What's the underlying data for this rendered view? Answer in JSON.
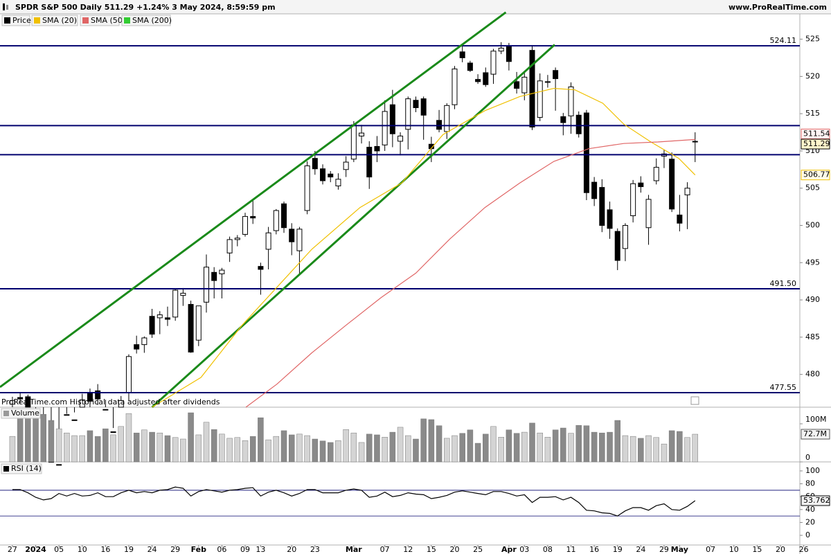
{
  "header": {
    "title": "SPDR S&P 500 Daily 511.29 +1.24% 3 May 2024, 8:59:59 pm",
    "site": "www.ProRealTime.com"
  },
  "chart_data": [
    {
      "type": "candlestick",
      "note": "ProRealTime.com Historical data adjusted after dividends",
      "xlim": [
        -1.6,
        101.5
      ],
      "ylim": [
        475.6,
        528.4
      ],
      "yticks": [
        480,
        485,
        490,
        495,
        500,
        505,
        510,
        515,
        520,
        525
      ],
      "series": [
        {
          "name": "Price",
          "color": "#000000",
          "open": [
            476.0,
            476.9,
            477.0,
            473.4,
            470.4,
            468.3,
            467.5,
            468.4,
            471.9,
            474.2,
            477.6,
            477.8,
            475.3,
            471.8,
            474.0,
            477.6,
            484.0,
            484.0,
            487.8,
            487.6,
            487.6,
            487.7,
            490.6,
            489.4,
            484.6,
            489.7,
            493.7,
            493.5,
            496.3,
            498.1,
            498.8,
            501.2,
            494.5,
            496.8,
            499.3,
            502.9,
            499.5,
            496.6,
            502.0,
            509.0,
            507.6,
            506.9,
            505.3,
            507.5,
            508.9,
            512.0,
            510.5,
            510.6,
            510.8,
            516.2,
            511.3,
            512.9,
            516.8,
            517.0,
            510.9,
            514.1,
            512.6,
            516.2,
            523.3,
            521.8,
            519.6,
            520.5,
            520.3,
            523.4,
            524.0,
            519.3,
            517.8,
            523.5,
            514.5,
            519.2,
            520.8,
            514.6,
            514.7,
            514.8,
            515.1,
            505.8,
            505.1,
            502.1,
            499.2,
            496.9,
            501.3,
            505.7,
            499.7,
            506.0,
            509.3,
            508.9,
            501.4,
            504.1,
            511.2
          ],
          "high": [
            477.0,
            477.6,
            477.3,
            473.8,
            471.2,
            470.9,
            470.4,
            474.7,
            474.9,
            477.4,
            478.1,
            478.7,
            476.6,
            472.8,
            477.1,
            482.7,
            485.2,
            485.1,
            488.8,
            488.5,
            489.1,
            491.4,
            491.6,
            489.9,
            489.2,
            496.1,
            494.4,
            494.3,
            498.5,
            498.7,
            501.7,
            503.5,
            495.0,
            499.8,
            502.2,
            503.2,
            500.3,
            499.8,
            508.6,
            510.0,
            508.2,
            507.3,
            507.0,
            509.3,
            514.0,
            513.5,
            511.3,
            512.0,
            516.8,
            518.2,
            512.5,
            517.3,
            517.3,
            517.3,
            511.9,
            515.5,
            516.4,
            521.4,
            524.2,
            522.1,
            520.3,
            521.2,
            523.7,
            524.6,
            524.5,
            520.6,
            520.7,
            524.2,
            520.4,
            520.2,
            521.2,
            515.1,
            519.2,
            515.3,
            515.5,
            506.5,
            506.2,
            503.2,
            499.6,
            500.3,
            506.1,
            506.6,
            504.1,
            509.0,
            510.2,
            509.8,
            504.1,
            505.8,
            512.5
          ],
          "low": [
            475.0,
            476.1,
            473.7,
            470.5,
            468.2,
            467.3,
            466.4,
            468.3,
            471.4,
            473.9,
            473.3,
            475.9,
            473.1,
            469.9,
            472.0,
            476.5,
            482.8,
            482.9,
            484.9,
            485.4,
            486.5,
            487.2,
            489.2,
            482.9,
            483.8,
            488.3,
            490.2,
            490.2,
            495.1,
            497.2,
            498.5,
            500.2,
            490.7,
            494.1,
            498.8,
            499.0,
            496.0,
            493.5,
            501.5,
            506.8,
            505.5,
            505.8,
            504.8,
            506.5,
            508.5,
            511.0,
            504.9,
            508.5,
            510.0,
            510.5,
            509.4,
            510.2,
            515.2,
            511.5,
            508.5,
            512.5,
            511.6,
            515.6,
            521.9,
            520.6,
            519.0,
            518.6,
            519.0,
            523.0,
            520.8,
            517.7,
            516.8,
            512.8,
            514.0,
            518.5,
            515.4,
            512.1,
            512.3,
            511.8,
            503.4,
            502.6,
            499.1,
            498.2,
            494.0,
            495.2,
            500.4,
            504.4,
            497.4,
            505.5,
            507.7,
            501.8,
            499.2,
            499.5,
            508.5
          ],
          "close": [
            476.5,
            476.7,
            475.3,
            472.7,
            468.8,
            467.3,
            467.9,
            474.6,
            473.9,
            476.6,
            476.4,
            476.7,
            474.9,
            472.3,
            476.5,
            482.4,
            483.4,
            484.9,
            485.4,
            488.0,
            487.4,
            491.3,
            490.9,
            483.0,
            489.2,
            494.4,
            492.6,
            494.0,
            498.1,
            498.3,
            501.2,
            501.0,
            494.1,
            499.0,
            502.0,
            499.7,
            497.8,
            499.5,
            508.0,
            507.6,
            506.0,
            506.5,
            506.2,
            508.5,
            513.5,
            512.4,
            506.5,
            510.0,
            515.3,
            512.3,
            512.0,
            517.0,
            515.8,
            514.8,
            510.3,
            512.9,
            516.1,
            521.0,
            522.5,
            520.8,
            519.3,
            518.9,
            523.4,
            523.8,
            522.0,
            518.4,
            519.9,
            513.2,
            519.4,
            519.3,
            519.7,
            513.8,
            518.6,
            512.3,
            504.4,
            503.6,
            500.0,
            499.6,
            495.3,
            500.0,
            505.6,
            505.2,
            503.5,
            507.8,
            509.6,
            502.2,
            500.3,
            505.0,
            511.29
          ]
        },
        {
          "name": "SMA (20)",
          "color": "#f0c000",
          "x": [
            18.0,
            24.3,
            29.6,
            34.1,
            38.6,
            44.8,
            50.2,
            55.5,
            60.9,
            65.4,
            69.8,
            72.5,
            76.1,
            78.8,
            82.3,
            85.9,
            88
          ],
          "values": [
            475.6,
            479.6,
            486.6,
            491.7,
            496.8,
            502.4,
            505.7,
            512.2,
            515.4,
            517.3,
            518.4,
            518.2,
            516.4,
            513.6,
            511.2,
            509.0,
            506.77
          ]
        },
        {
          "name": "SMA (50)",
          "color": "#e06666",
          "x": [
            30.1,
            34.1,
            38.6,
            43.0,
            47.5,
            52.0,
            56.4,
            60.9,
            65.4,
            69.8,
            74.3,
            78.8,
            83.2,
            88
          ],
          "values": [
            475.6,
            478.7,
            482.9,
            486.6,
            490.3,
            493.6,
            498.2,
            502.4,
            505.7,
            508.6,
            510.3,
            511.0,
            511.2,
            511.54
          ]
        },
        {
          "name": "SMA (200)",
          "color": "#33cc33"
        }
      ],
      "levels": [
        {
          "value": 524.11,
          "label": "524.11"
        },
        513.4,
        509.5,
        {
          "value": 491.5,
          "label": "491.50"
        },
        {
          "value": 477.55,
          "label": "477.55"
        }
      ],
      "level_color": "#00006e",
      "trendlines": [
        {
          "x": [
            -1.6,
            63.6
          ],
          "y": [
            478.3,
            528.6
          ]
        },
        {
          "x": [
            18.0,
            69.9
          ],
          "y": [
            475.6,
            524.26
          ]
        }
      ],
      "trend_color": "#1a8a1a"
    },
    {
      "type": "volume",
      "title": "Volume",
      "xlim": [
        -1.6,
        101.5
      ],
      "ylim": [
        0,
        143.6
      ],
      "yticks": [
        0,
        {
          "value": 100,
          "label": "100M"
        }
      ],
      "up_color": "#d4d4d4",
      "down_color": "#8a8a8a",
      "values": [
        67,
        127,
        129,
        125,
        125,
        109,
        87,
        76,
        69,
        69,
        82,
        67,
        87,
        71,
        93,
        127,
        76,
        84,
        78,
        76,
        69,
        64,
        60,
        129,
        71,
        104,
        85,
        73,
        62,
        64,
        56,
        67,
        116,
        58,
        67,
        82,
        71,
        73,
        69,
        60,
        55,
        51,
        56,
        85,
        76,
        51,
        73,
        71,
        65,
        78,
        91,
        69,
        60,
        113,
        111,
        95,
        62,
        69,
        75,
        84,
        49,
        73,
        93,
        65,
        84,
        75,
        78,
        102,
        76,
        65,
        84,
        89,
        75,
        96,
        95,
        78,
        76,
        78,
        109,
        69,
        67,
        62,
        69,
        64,
        47,
        82,
        80,
        64,
        72.7
      ],
      "last_value_label": "72.7M"
    },
    {
      "type": "line",
      "title": "RSI (14)",
      "color": "#000000",
      "xlim": [
        -1.6,
        101.5
      ],
      "ylim": [
        -15,
        112.9
      ],
      "yticks": [
        0,
        20,
        40,
        60,
        80,
        100
      ],
      "levels": [
        70,
        30
      ],
      "level_color": "#00006e",
      "values": [
        71,
        71,
        66,
        59,
        55,
        57,
        65,
        61,
        65,
        61,
        62,
        66,
        60,
        60,
        66,
        70,
        66,
        68,
        66,
        70,
        71,
        75,
        73,
        61,
        68,
        71,
        69,
        67,
        70,
        71,
        73,
        74,
        61,
        67,
        70,
        66,
        61,
        65,
        71,
        71,
        66,
        66,
        66,
        70,
        72,
        70,
        59,
        61,
        67,
        60,
        62,
        66,
        64,
        63,
        57,
        59,
        62,
        67,
        69,
        67,
        65,
        63,
        68,
        68,
        65,
        61,
        63,
        51,
        59,
        59,
        60,
        55,
        59,
        51,
        39,
        38,
        35,
        34,
        30,
        38,
        43,
        43,
        39,
        46,
        49,
        40,
        39,
        45,
        53.762
      ],
      "xticks": [
        {
          "value": 0,
          "label": "27"
        },
        {
          "value": 3,
          "label": "2024"
        },
        {
          "value": 6,
          "label": "05"
        },
        {
          "value": 9,
          "label": "10"
        },
        {
          "value": 12,
          "label": "16"
        },
        {
          "value": 15,
          "label": "19"
        },
        {
          "value": 18,
          "label": "24"
        },
        {
          "value": 21,
          "label": "29"
        },
        {
          "value": 24,
          "label": "Feb"
        },
        {
          "value": 27,
          "label": "06"
        },
        {
          "value": 30,
          "label": "09"
        },
        {
          "value": 32,
          "label": "13"
        },
        {
          "value": 36,
          "label": "20"
        },
        {
          "value": 39,
          "label": "23"
        },
        {
          "value": 44,
          "label": "Mar"
        },
        {
          "value": 48,
          "label": "07"
        },
        {
          "value": 51,
          "label": "12"
        },
        {
          "value": 54,
          "label": "15"
        },
        {
          "value": 57,
          "label": "20"
        },
        {
          "value": 60,
          "label": "25"
        },
        {
          "value": 64,
          "label": "Apr"
        },
        {
          "value": 66,
          "label": "03"
        },
        {
          "value": 69,
          "label": "08"
        },
        {
          "value": 72,
          "label": "11"
        },
        {
          "value": 75,
          "label": "16"
        },
        {
          "value": 78,
          "label": "19"
        },
        {
          "value": 81,
          "label": "24"
        },
        {
          "value": 84,
          "label": "29"
        },
        {
          "value": 86,
          "label": "May"
        },
        {
          "value": 90,
          "label": "07"
        },
        {
          "value": 93,
          "label": "10"
        },
        {
          "value": 96,
          "label": "15"
        },
        {
          "value": 99,
          "label": "20"
        },
        {
          "value": 102,
          "label": "26"
        }
      ]
    }
  ]
}
